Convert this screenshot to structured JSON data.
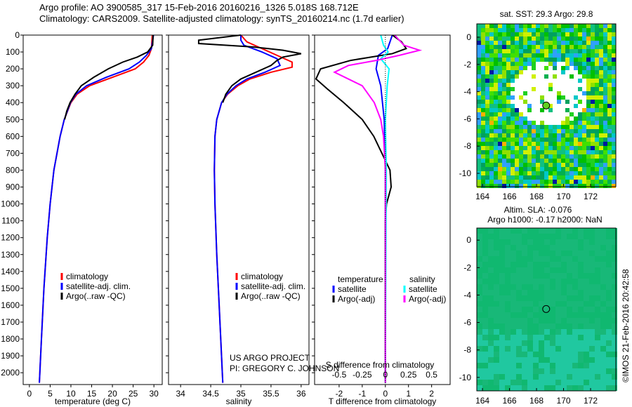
{
  "title": {
    "line1": "Argo profile: AO 3900585_317 15-Feb-2016 20160216_1326 5.018S 168.712E",
    "line2": "Climatology: CARS2009. Satellite-adjusted climatology: synTS_20160214.nc (1.7d earlier)"
  },
  "credit": {
    "line1": "US ARGO PROJECT",
    "line2": "PI: GREGORY C. JOHNSON"
  },
  "side_stamp": "©IMOS 21-Feb-2016 20:42:58",
  "colors": {
    "climatology": "#ff0000",
    "satellite": "#0000ff",
    "argo": "#000000",
    "sal_sat": "#00ffff",
    "sal_argo": "#ff00ff"
  },
  "chart_data": [
    {
      "type": "line",
      "name": "temperature",
      "xlabel": "temperature (deg C)",
      "xlim": [
        -1.5,
        32
      ],
      "ylim": [
        2070,
        0
      ],
      "xticks": [
        0,
        5,
        10,
        15,
        20,
        25,
        30
      ],
      "yticks": [
        0,
        100,
        200,
        300,
        400,
        500,
        600,
        700,
        800,
        900,
        1000,
        1100,
        1200,
        1300,
        1400,
        1500,
        1600,
        1700,
        1800,
        1900,
        2000
      ],
      "legend": [
        "climatology",
        "satellite-adj. clim.",
        "Argo(..raw -QC)"
      ],
      "series": [
        {
          "name": "climatology",
          "color": "#ff0000",
          "depth": [
            0,
            80,
            120,
            160,
            200,
            250,
            300,
            350,
            400,
            500,
            600,
            800,
            1000,
            1200,
            1500,
            1800,
            2060
          ],
          "values": [
            29.6,
            29.4,
            28.8,
            27.5,
            25.5,
            20,
            14.5,
            11.5,
            10,
            8.4,
            7.4,
            5.9,
            5,
            4.3,
            3.5,
            2.9,
            2.4
          ]
        },
        {
          "name": "satellite-adj. clim.",
          "color": "#0000ff",
          "depth": [
            0,
            80,
            120,
            160,
            200,
            250,
            300,
            350,
            400,
            500,
            600,
            800,
            1000,
            1200,
            1500,
            1800,
            2060
          ],
          "values": [
            29.9,
            29.4,
            28.2,
            26.5,
            24,
            18.5,
            13.8,
            11.2,
            9.9,
            8.4,
            7.4,
            5.9,
            5,
            4.3,
            3.5,
            2.9,
            2.4
          ]
        },
        {
          "name": "Argo(..raw -QC)",
          "color": "#000000",
          "depth": [
            0,
            60,
            100,
            130,
            160,
            200,
            250,
            300,
            350,
            400,
            450,
            500
          ],
          "values": [
            29.8,
            29.7,
            28.5,
            26,
            22.5,
            19,
            15.5,
            12.5,
            11,
            9.8,
            9,
            8.5
          ]
        }
      ]
    },
    {
      "type": "line",
      "name": "salinity",
      "xlabel": "salinity",
      "xlim": [
        33.8,
        36.13
      ],
      "ylim": [
        2070,
        0
      ],
      "xticks": [
        34,
        34.5,
        35,
        35.5,
        36
      ],
      "legend": [
        "climatology",
        "satellite-adj. clim.",
        "Argo(..raw -QC)"
      ],
      "series": [
        {
          "name": "climatology",
          "color": "#ff0000",
          "depth": [
            0,
            40,
            80,
            120,
            160,
            190,
            220,
            260,
            300,
            350,
            400,
            500,
            600,
            800,
            1000,
            1300,
            1600,
            2060
          ],
          "values": [
            35.0,
            35.1,
            35.35,
            35.6,
            35.85,
            35.85,
            35.5,
            35.15,
            34.95,
            34.78,
            34.68,
            34.6,
            34.57,
            34.56,
            34.57,
            34.6,
            34.64,
            34.7
          ]
        },
        {
          "name": "satellite-adj. clim.",
          "color": "#0000ff",
          "depth": [
            0,
            30,
            60,
            100,
            140,
            180,
            220,
            260,
            300,
            350,
            400,
            500,
            600,
            800,
            1000,
            1300,
            1600,
            2060
          ],
          "values": [
            35.0,
            35.0,
            35.05,
            35.35,
            35.6,
            35.65,
            35.4,
            35.1,
            34.92,
            34.77,
            34.68,
            34.6,
            34.57,
            34.56,
            34.57,
            34.6,
            34.64,
            34.7
          ]
        },
        {
          "name": "Argo(..raw -QC)",
          "color": "#000000",
          "depth": [
            0,
            30,
            50,
            70,
            90,
            110,
            130,
            150,
            180,
            220,
            260,
            300,
            350,
            400
          ],
          "values": [
            35.0,
            34.3,
            34.3,
            35.2,
            35.7,
            36.0,
            35.7,
            35.6,
            35.5,
            35.25,
            35.0,
            34.85,
            34.75,
            34.7
          ]
        }
      ]
    },
    {
      "type": "line",
      "name": "difference",
      "xlabel": "T difference from climatology",
      "x2label": "S difference from climatology",
      "xlim": [
        -3.06,
        2.8
      ],
      "ylim": [
        2070,
        0
      ],
      "xticks": [
        -2,
        -1,
        0,
        1,
        2
      ],
      "x2ticks": [
        -0.5,
        -0.25,
        0,
        0.25,
        0.5
      ],
      "legend_titles": [
        "temperature",
        "salinity"
      ],
      "legend": [
        "satellite",
        "Argo(-adj)",
        "satellite",
        "Argo(-adj)"
      ],
      "series": [
        {
          "name": "T satellite",
          "color": "#0000ff",
          "scale": "T",
          "depth": [
            0,
            80,
            120,
            200,
            300,
            500,
            800,
            2060
          ],
          "values": [
            0.3,
            0.1,
            -0.3,
            -0.4,
            -0.2,
            -0.05,
            0,
            0
          ]
        },
        {
          "name": "T Argo(-adj)",
          "color": "#000000",
          "scale": "T",
          "depth": [
            0,
            40,
            80,
            110,
            130,
            150,
            200,
            260,
            320,
            400,
            500,
            600,
            700,
            800,
            900,
            1000,
            1100,
            2060
          ],
          "values": [
            0.3,
            0.7,
            0.9,
            0.3,
            -0.6,
            -1.5,
            -2.8,
            -3.0,
            -2.5,
            -1.8,
            -1,
            -0.5,
            -0.15,
            0.2,
            0.25,
            0.05,
            0,
            0
          ]
        },
        {
          "name": "S satellite",
          "color": "#00ffff",
          "scale": "S",
          "depth": [
            0,
            60,
            100,
            140,
            200,
            300,
            500,
            800,
            2060
          ],
          "values": [
            -0.05,
            -0.02,
            0.03,
            -0.05,
            0.04,
            0.02,
            0,
            0.01,
            0
          ]
        },
        {
          "name": "S Argo(-adj)",
          "color": "#ff00ff",
          "scale": "S",
          "depth": [
            0,
            60,
            90,
            120,
            150,
            180,
            220,
            260,
            300,
            400,
            500,
            600,
            800,
            1000,
            2060
          ],
          "values": [
            0.1,
            0.2,
            0.37,
            0.15,
            -0.1,
            -0.4,
            -0.55,
            -0.4,
            -0.25,
            -0.12,
            -0.05,
            -0.02,
            0,
            0,
            0
          ]
        }
      ]
    },
    {
      "type": "heatmap",
      "name": "sst-map",
      "title": "sat. SST: 29.3 Argo: 29.8",
      "xlim": [
        163.58,
        173.87
      ],
      "ylim": [
        -10.98,
        0.98
      ],
      "xticks": [
        164,
        166,
        168,
        170,
        172
      ],
      "yticks": [
        0,
        -2,
        -4,
        -6,
        -8,
        -10
      ],
      "marker": {
        "lon": 168.712,
        "lat": -5.018
      }
    },
    {
      "type": "heatmap",
      "name": "sla-map",
      "title": "Altim. SLA: -0.076",
      "subtitle": "Argo h1000: -0.17 h2000: NaN",
      "xlim": [
        163.58,
        173.87
      ],
      "ylim": [
        -10.98,
        0.88
      ],
      "xticks": [
        164,
        166,
        168,
        170,
        172
      ],
      "yticks": [
        0,
        -2,
        -4,
        -6,
        -8,
        -10
      ],
      "marker": {
        "lon": 168.712,
        "lat": -5.018
      }
    }
  ]
}
